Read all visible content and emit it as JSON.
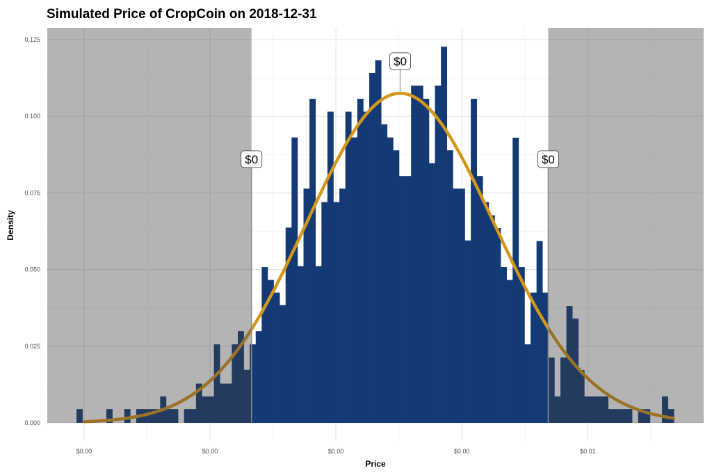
{
  "chart_data": {
    "type": "bar",
    "title": "Simulated Price of CropCoin on 2018-12-31",
    "xlabel": "Price",
    "ylabel": "Density",
    "ylim": [
      0,
      0.128
    ],
    "xlim": [
      -0.00073,
      0.0123
    ],
    "grid": true,
    "y_ticks": [
      0,
      0.025,
      0.05,
      0.075,
      0.1,
      0.125
    ],
    "y_tick_labels": [
      "0.000",
      "0.025",
      "0.050",
      "0.075",
      "0.100",
      "0.125"
    ],
    "x_ticks": [
      0,
      0.0025,
      0.005,
      0.0075,
      0.01
    ],
    "x_tick_labels": [
      "$0.00",
      "$0.00",
      "$0.00",
      "$0.00",
      "$0.01"
    ],
    "histogram": {
      "bin_start": -0.00015,
      "bin_width": 0.0001186,
      "densities": [
        0.0045,
        0,
        0,
        0,
        0,
        0.0045,
        0,
        0,
        0.0045,
        0,
        0.0045,
        0.0045,
        0.0045,
        0.0045,
        0.0086,
        0.0045,
        0.0045,
        0,
        0.0045,
        0.0045,
        0.0128,
        0.0086,
        0.0086,
        0.0256,
        0.0128,
        0.0128,
        0.0256,
        0.0299,
        0.0173,
        0.0256,
        0.0299,
        0.0508,
        0.0466,
        0.0425,
        0.0384,
        0.0637,
        0.0931,
        0.0511,
        0.0764,
        0.1057,
        0.0511,
        0.072,
        0.1015,
        0.072,
        0.0764,
        0.1015,
        0.0931,
        0.1057,
        0.1015,
        0.1141,
        0.1183,
        0.0974,
        0.0931,
        0.0889,
        0.0805,
        0.0805,
        0.11,
        0.11,
        0.1057,
        0.0847,
        0.11,
        0.1227,
        0.0889,
        0.0764,
        0.0764,
        0.0595,
        0.1057,
        0.0805,
        0.072,
        0.0677,
        0.0635,
        0.0508,
        0.0466,
        0.093,
        0.0508,
        0.0256,
        0.0425,
        0.0593,
        0.0425,
        0.0213,
        0.0086,
        0.0213,
        0.0381,
        0.034,
        0.0172,
        0.0086,
        0.0086,
        0.0086,
        0.0086,
        0.0045,
        0.0045,
        0.0045,
        0.0045,
        0,
        0.0045,
        0.0045,
        0,
        0,
        0.0086,
        0.0045
      ]
    },
    "normal_curve": {
      "mean": 0.006276,
      "sd": 0.00186,
      "peak_density": 0.1075
    },
    "shaded_regions": [
      [
        -0.00073,
        0.003324
      ],
      [
        0.009214,
        0.0123
      ]
    ],
    "annotations": [
      {
        "x": 0.003324,
        "y": 0.086,
        "text": "$0"
      },
      {
        "x": 0.006276,
        "y": 0.118,
        "text": "$0"
      },
      {
        "x": 0.009214,
        "y": 0.086,
        "text": "$0"
      }
    ],
    "colors": {
      "bar": "#133a75",
      "curve": "#d4961b",
      "shade": "rgba(62,62,62,0.39)",
      "grid": "#e6e6e6"
    }
  }
}
